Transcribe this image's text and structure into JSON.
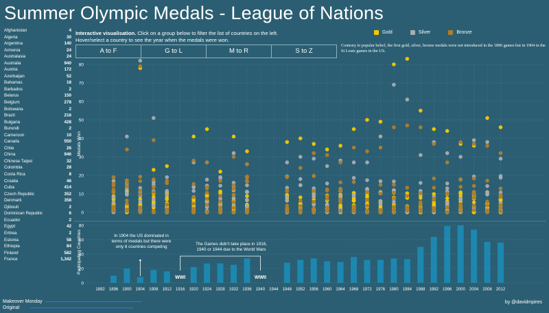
{
  "title": "Summer Olympic Medals - League of Nations",
  "intro": {
    "bold": "Interactive visualisation.",
    "text1": "Click on a group below to filter the list of countries on the left.",
    "text2": "Hover/select a country to see the year when the medals were won."
  },
  "groups": [
    "A to F",
    "G to L",
    "M to R",
    "S to Z"
  ],
  "legend": [
    {
      "label": "Gold",
      "color": "#f5c800"
    },
    {
      "label": "Silver",
      "color": "#a9acb1"
    },
    {
      "label": "Bronze",
      "color": "#b07e2c"
    }
  ],
  "note": "Contrary to popular belief, the first gold, silver, bronze medals were not introduced in the 1896 games but in 1904 in the St Louis games in the US.",
  "countries": [
    {
      "name": "Afghanistan",
      "value": "4"
    },
    {
      "name": "Algeria",
      "value": "30"
    },
    {
      "name": "Argentina",
      "value": "140"
    },
    {
      "name": "Armenia",
      "value": "24"
    },
    {
      "name": "Australasia",
      "value": "24"
    },
    {
      "name": "Australia",
      "value": "940"
    },
    {
      "name": "Austria",
      "value": "172"
    },
    {
      "name": "Azerbaijan",
      "value": "52"
    },
    {
      "name": "Bahamas",
      "value": "18"
    },
    {
      "name": "Barbados",
      "value": "2"
    },
    {
      "name": "Belarus",
      "value": "150"
    },
    {
      "name": "Belgium",
      "value": "278"
    },
    {
      "name": "Botswana",
      "value": "2"
    },
    {
      "name": "Brazil",
      "value": "216"
    },
    {
      "name": "Bulgaria",
      "value": "428"
    },
    {
      "name": "Burundi",
      "value": "2"
    },
    {
      "name": "Cameroon",
      "value": "10"
    },
    {
      "name": "Canada",
      "value": "550"
    },
    {
      "name": "Chile",
      "value": "26"
    },
    {
      "name": "China",
      "value": "946"
    },
    {
      "name": "Chinese Taipei",
      "value": "32"
    },
    {
      "name": "Colombia",
      "value": "28"
    },
    {
      "name": "Costa Rica",
      "value": "8"
    },
    {
      "name": "Croatia",
      "value": "46"
    },
    {
      "name": "Cuba",
      "value": "414"
    },
    {
      "name": "Czech Republic",
      "value": "352"
    },
    {
      "name": "Denmark",
      "value": "358"
    },
    {
      "name": "Djibouti",
      "value": "2"
    },
    {
      "name": "Dominican Republic",
      "value": "6"
    },
    {
      "name": "Ecuador",
      "value": "2"
    },
    {
      "name": "Egypt",
      "value": "42"
    },
    {
      "name": "Eritrea",
      "value": "2"
    },
    {
      "name": "Estonia",
      "value": "58"
    },
    {
      "name": "Ethiopia",
      "value": "84"
    },
    {
      "name": "Finland",
      "value": "582"
    },
    {
      "name": "France",
      "value": "1,342"
    }
  ],
  "footer": {
    "left1": "Makeover Monday",
    "left2": "Original",
    "right": "by @davidmpires"
  },
  "colors": {
    "background": "#2b5e72",
    "gold": "#f5c800",
    "silver": "#a9acb1",
    "bronze": "#b07e2c",
    "bars": "#1d87b0"
  },
  "chart_data": [
    {
      "type": "scatter",
      "title": "",
      "ylabel": "Medals Won",
      "ylim": [
        0,
        87
      ],
      "yticks": [
        0,
        10,
        20,
        30,
        40,
        50,
        60,
        70,
        80
      ],
      "grid": true,
      "x": [
        1896,
        1900,
        1904,
        1908,
        1912,
        1920,
        1924,
        1928,
        1932,
        1936,
        1948,
        1952,
        1956,
        1960,
        1964,
        1968,
        1972,
        1976,
        1980,
        1984,
        1988,
        1992,
        1996,
        2000,
        2004,
        2008,
        2012
      ],
      "series": [
        {
          "name": "Gold",
          "color": "#f5c800",
          "max_values": [
            11,
            14,
            78,
            23,
            25,
            41,
            45,
            22,
            41,
            33,
            38,
            40,
            37,
            34,
            36,
            45,
            50,
            49,
            80,
            83,
            55,
            45,
            44,
            37,
            36,
            51,
            46
          ]
        },
        {
          "name": "Silver",
          "color": "#a9acb1",
          "max_values": [
            17,
            41,
            82,
            51,
            19,
            27,
            27,
            19,
            32,
            26,
            27,
            30,
            29,
            25,
            28,
            27,
            27,
            41,
            69,
            61,
            31,
            38,
            32,
            30,
            39,
            38,
            29
          ]
        },
        {
          "name": "Bronze",
          "color": "#b07e2c",
          "max_values": [
            19,
            34,
            79,
            39,
            17,
            28,
            27,
            17,
            30,
            26,
            19,
            24,
            32,
            31,
            27,
            35,
            33,
            35,
            46,
            47,
            46,
            37,
            27,
            38,
            37,
            36,
            32
          ]
        }
      ]
    },
    {
      "type": "bar",
      "title": "",
      "ylabel": "Participating Countries",
      "ylim": [
        0,
        85
      ],
      "yticks": [
        0,
        20,
        40,
        60,
        80
      ],
      "categories": [
        "1892",
        "1896",
        "1900",
        "1904",
        "1908",
        "1912",
        "1916",
        "1920",
        "1924",
        "1928",
        "1932",
        "1936",
        "1940",
        "1944",
        "1948",
        "1952",
        "1956",
        "1960",
        "1964",
        "1968",
        "1972",
        "1976",
        "1980",
        "1984",
        "1988",
        "1992",
        "1996",
        "2000",
        "2004",
        "2008",
        "2012"
      ],
      "values": [
        null,
        10,
        20,
        8,
        18,
        16,
        null,
        22,
        27,
        27,
        25,
        34,
        null,
        null,
        28,
        32,
        34,
        30,
        29,
        36,
        32,
        32,
        34,
        33,
        50,
        64,
        79,
        80,
        74,
        57,
        56
      ],
      "annotations": [
        {
          "text": [
            "In 1904 the US dominated in",
            "terms of medals but there were",
            "only 8 countries competing"
          ],
          "bold_parts": [
            "1904",
            "8"
          ],
          "x": "1904"
        },
        {
          "text": [
            "The Games didn't take place in 1916,",
            "1940 or 1944 due to the World Wars"
          ],
          "x": "1928"
        },
        {
          "text": [
            "WWI"
          ],
          "x": "1916"
        },
        {
          "text": [
            "WWII"
          ],
          "x": "1940"
        }
      ]
    }
  ]
}
